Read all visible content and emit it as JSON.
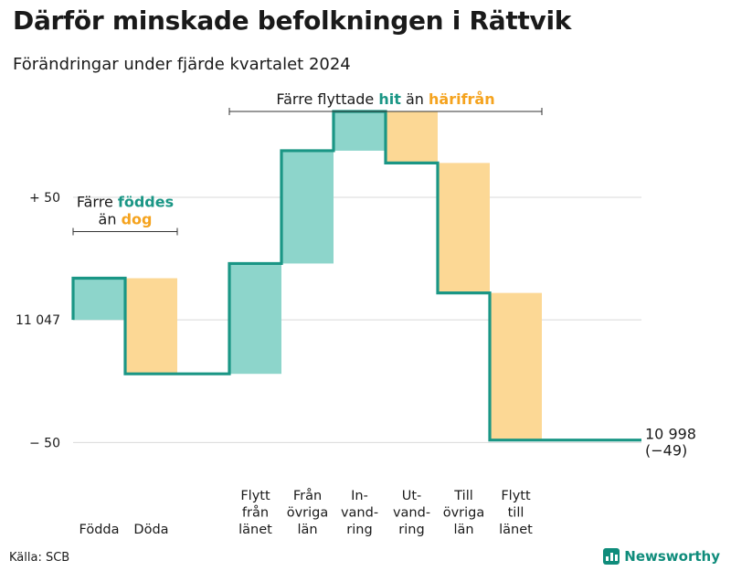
{
  "title": "Därför minskade befolkningen i Rättvik",
  "subtitle": "Förändringar under fjärde kvartalet 2024",
  "source": "Källa: SCB",
  "brand": {
    "name": "Newsworthy",
    "icon": "bar-chart-logo-icon"
  },
  "colors": {
    "teal_line": "#1a9685",
    "teal_fill": "#8dd5cb",
    "orange_fill": "#fcd895",
    "orange_text": "#f5a31e",
    "gridline": "#d9d9d9",
    "brand": "#0f8c7b"
  },
  "chart_data": {
    "type": "waterfall",
    "start_value": 11047,
    "end_value": 10998,
    "net_change_label": "(−49)",
    "end_label": "10 998",
    "y_ticks": [
      {
        "value": 50,
        "label": "+ 50"
      },
      {
        "value": 0,
        "label": "11 047"
      },
      {
        "value": -50,
        "label": "− 50"
      }
    ],
    "ylim": [
      -67,
      85
    ],
    "steps": [
      {
        "label": "Födda",
        "lines": [
          "Födda"
        ],
        "change": 17,
        "direction": "in"
      },
      {
        "label": "Döda",
        "lines": [
          "Döda"
        ],
        "change": -39,
        "direction": "out"
      },
      {
        "label": "",
        "lines": [],
        "change": 0,
        "direction": "gap"
      },
      {
        "label": "Flytt från länet",
        "lines": [
          "Flytt",
          "från",
          "länet"
        ],
        "change": 45,
        "direction": "in"
      },
      {
        "label": "Från övriga län",
        "lines": [
          "Från",
          "övriga",
          "län"
        ],
        "change": 46,
        "direction": "in"
      },
      {
        "label": "In-vand-ring",
        "lines": [
          "In-",
          "vand-",
          "ring"
        ],
        "change": 16,
        "direction": "in"
      },
      {
        "label": "Ut-vand-ring",
        "lines": [
          "Ut-",
          "vand-",
          "ring"
        ],
        "change": -21,
        "direction": "out"
      },
      {
        "label": "Till övriga län",
        "lines": [
          "Till",
          "övriga",
          "län"
        ],
        "change": -53,
        "direction": "out"
      },
      {
        "label": "Flytt till länet",
        "lines": [
          "Flytt",
          "till",
          "länet"
        ],
        "change": -60,
        "direction": "out"
      }
    ],
    "annotations": [
      {
        "name": "births-annotation",
        "lines": [
          [
            {
              "text": "Färre ",
              "style": "plain"
            },
            {
              "text": "föddes",
              "style": "teal"
            }
          ],
          [
            {
              "text": "än ",
              "style": "plain"
            },
            {
              "text": "dog",
              "style": "orange"
            }
          ]
        ],
        "span_steps": [
          0,
          1
        ]
      },
      {
        "name": "migration-annotation",
        "lines": [
          [
            {
              "text": "Färre flyttade ",
              "style": "plain"
            },
            {
              "text": "hit",
              "style": "teal"
            },
            {
              "text": "  än ",
              "style": "plain"
            },
            {
              "text": "härifrån",
              "style": "orange"
            }
          ]
        ],
        "span_steps": [
          3,
          8
        ]
      }
    ]
  }
}
